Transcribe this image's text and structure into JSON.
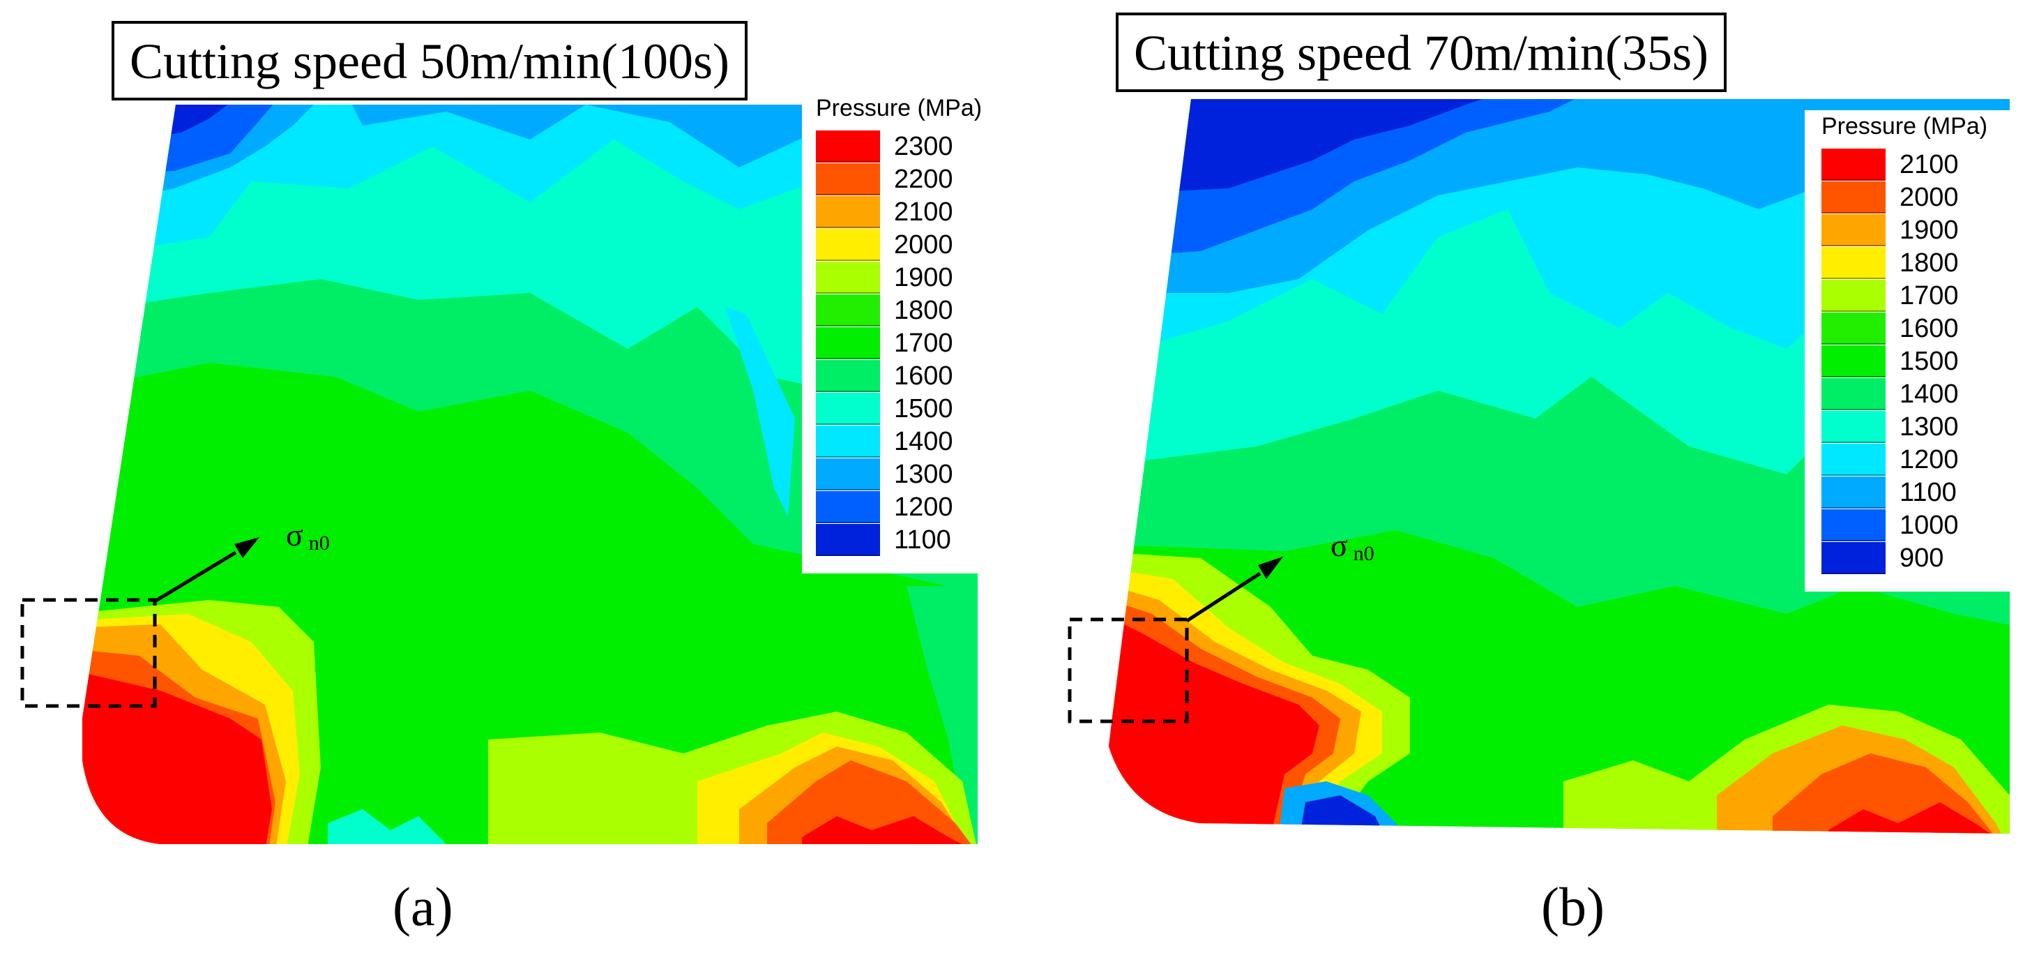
{
  "chart_data": [
    {
      "type": "heatmap",
      "panel_label": "(a)",
      "title": "Cutting speed 50m/min(100s)",
      "legend_title": "Pressure (MPa)",
      "legend_ticks": [
        "2300",
        "2200",
        "2100",
        "2000",
        "1900",
        "1800",
        "1700",
        "1600",
        "1500",
        "1400",
        "1300",
        "1200",
        "1100"
      ],
      "legend_colors": [
        "#ff0000",
        "#ff5500",
        "#ffa500",
        "#ffee00",
        "#aaff00",
        "#22ee00",
        "#00ee00",
        "#00ee66",
        "#00ffcc",
        "#00e8ff",
        "#00aaff",
        "#0060ff",
        "#0022dd"
      ],
      "annotation": {
        "symbol": "σ",
        "subscript": "n0"
      }
    },
    {
      "type": "heatmap",
      "panel_label": "(b)",
      "title": "Cutting speed 70m/min(35s)",
      "legend_title": "Pressure (MPa)",
      "legend_ticks": [
        "2100",
        "2000",
        "1900",
        "1800",
        "1700",
        "1600",
        "1500",
        "1400",
        "1300",
        "1200",
        "1100",
        "1000",
        "900"
      ],
      "legend_colors": [
        "#ff0000",
        "#ff5500",
        "#ffa500",
        "#ffee00",
        "#aaff00",
        "#22ee00",
        "#00ee00",
        "#00ee66",
        "#00ffcc",
        "#00e8ff",
        "#00aaff",
        "#0060ff",
        "#0022dd"
      ],
      "annotation": {
        "symbol": "σ",
        "subscript": "n0"
      }
    }
  ]
}
